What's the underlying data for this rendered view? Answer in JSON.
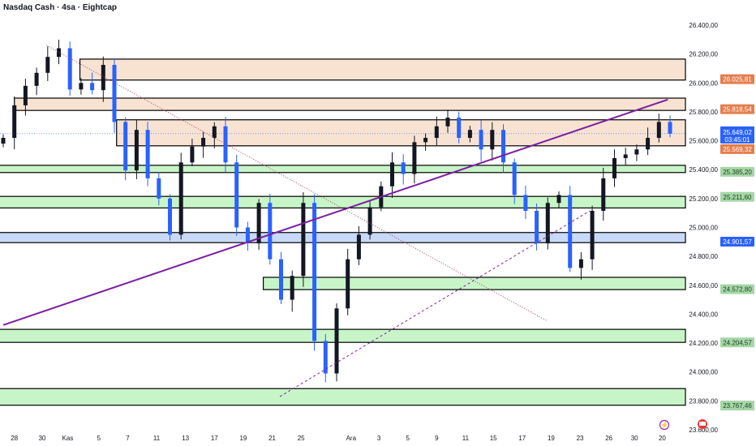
{
  "header": {
    "title": "Nasdaq Cash · 4sa · Eightcap"
  },
  "colors": {
    "up": "#131722",
    "down": "#2962ff",
    "supply": "#f8e3d3",
    "demand": "#c8f5c8",
    "pivot": "#c9daf8",
    "trend": "#7b1fa2",
    "badge_orange": "#e57e4d",
    "badge_green": "#a5d6a7",
    "badge_blue": "#2962ff"
  },
  "chart_data": {
    "type": "candlestick",
    "title": "Nasdaq Cash · 4sa · Eightcap",
    "ylim": [
      23600,
      26400
    ],
    "yticks": [
      "26.400,00",
      "26.200,00",
      "26.000,00",
      "25.800,00",
      "25.600,00",
      "25.400,00",
      "25.200,00",
      "25.000,00",
      "24.800,00",
      "24.600,00",
      "24.400,00",
      "24.200,00",
      "24.000,00",
      "23.800,00",
      "23.600,00"
    ],
    "ytick_values": [
      26400,
      26200,
      26000,
      25800,
      25600,
      25400,
      25200,
      25000,
      24800,
      24600,
      24400,
      24200,
      24000,
      23800,
      23600
    ],
    "xticks": [
      "28",
      "30",
      "Kas",
      "5",
      "7",
      "11",
      "13",
      "17",
      "19",
      "21",
      "25",
      "Ara",
      "3",
      "5",
      "9",
      "11",
      "15",
      "17",
      "19",
      "23",
      "26",
      "30",
      "20"
    ],
    "xtick_index": [
      1,
      3.5,
      5.8,
      8.6,
      11.2,
      13.8,
      16.4,
      19,
      21.6,
      24.2,
      26.8,
      31.3,
      33.8,
      36.4,
      39,
      41.6,
      44.1,
      46.7,
      49.3,
      51.9,
      54.5,
      56.8,
      59.3
    ],
    "closes": [
      25620,
      25845,
      25980,
      26070,
      26180,
      26240,
      25955,
      26000,
      25950,
      26125,
      25730,
      25395,
      25675,
      25340,
      25200,
      24950,
      25450,
      25560,
      25620,
      25700,
      25450,
      25000,
      24890,
      25170,
      24780,
      24500,
      24665,
      25170,
      24215,
      23990,
      24440,
      24780,
      24950,
      25140,
      25285,
      25450,
      25370,
      25590,
      25620,
      25700,
      25760,
      25620,
      25675,
      25540,
      25675,
      25450,
      25225,
      25115,
      24890,
      25170,
      25225,
      24720,
      24780,
      25115,
      25340,
      25480,
      25505,
      25540,
      25620,
      25730,
      25649.02
    ],
    "zones": [
      {
        "type": "supply",
        "top": 26165,
        "bottom": 26020,
        "start": 6.9
      },
      {
        "type": "supply",
        "top": 25895,
        "bottom": 25810,
        "start": 1
      },
      {
        "type": "supply",
        "top": 25745,
        "bottom": 25565,
        "start": 10.2
      },
      {
        "type": "demand",
        "top": 25430,
        "bottom": 25380,
        "start": 0
      },
      {
        "type": "demand",
        "top": 25215,
        "bottom": 25135,
        "start": 0
      },
      {
        "type": "pivot",
        "top": 24965,
        "bottom": 24895,
        "start": 0
      },
      {
        "type": "demand",
        "top": 24655,
        "bottom": 24570,
        "start": 23.4
      },
      {
        "type": "demand",
        "top": 24295,
        "bottom": 24205,
        "start": 0
      },
      {
        "type": "demand",
        "top": 23885,
        "bottom": 23770,
        "start": 0
      }
    ],
    "trendlines": [
      {
        "style": "solid",
        "from": [
          0,
          24325
        ],
        "to": [
          59.8,
          25885
        ]
      },
      {
        "style": "dotted",
        "from": [
          3.9,
          26260
        ],
        "to": [
          48.9,
          24355
        ]
      },
      {
        "style": "dashed",
        "from": [
          24.9,
          23830
        ],
        "to": [
          52.8,
          25115
        ]
      }
    ],
    "price_badges": [
      {
        "label": "26.025,81",
        "value": 26025.81,
        "kind": "orange"
      },
      {
        "label": "25.818,54",
        "value": 25818.54,
        "kind": "orange"
      },
      {
        "label": "25.649,02",
        "sub": "03:45:01",
        "value": 25649.02,
        "kind": "blue"
      },
      {
        "label": "25.569,32",
        "value": 25569.32,
        "kind": "orange"
      },
      {
        "label": "25.385,20",
        "value": 25385.2,
        "kind": "green"
      },
      {
        "label": "25.211,60",
        "value": 25211.6,
        "kind": "green"
      },
      {
        "label": "24.901,57",
        "value": 24901.57,
        "kind": "blue"
      },
      {
        "label": "24.572,80",
        "value": 24572.8,
        "kind": "green"
      },
      {
        "label": "24.204,57",
        "value": 24204.57,
        "kind": "green"
      },
      {
        "label": "23.767,46",
        "value": 23767.46,
        "kind": "green"
      }
    ]
  },
  "icons": {
    "event1": "lightning-icon",
    "event2": "us-flag-icon"
  }
}
